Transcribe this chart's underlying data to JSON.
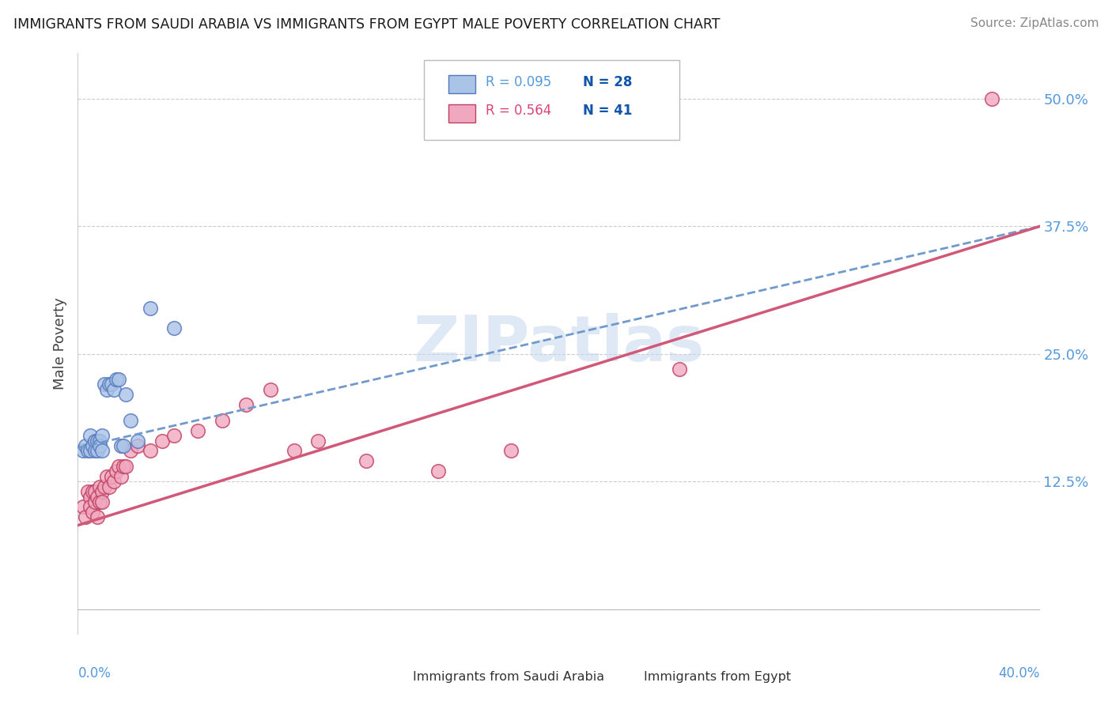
{
  "title": "IMMIGRANTS FROM SAUDI ARABIA VS IMMIGRANTS FROM EGYPT MALE POVERTY CORRELATION CHART",
  "source": "Source: ZipAtlas.com",
  "ylabel": "Male Poverty",
  "y_ticks": [
    0.0,
    0.125,
    0.25,
    0.375,
    0.5
  ],
  "y_tick_labels": [
    "",
    "12.5%",
    "25.0%",
    "37.5%",
    "50.0%"
  ],
  "x_range": [
    0.0,
    0.4
  ],
  "y_range": [
    -0.025,
    0.545
  ],
  "color_saudi": "#aac4e8",
  "color_egypt": "#f0a8c0",
  "color_saudi_line": "#7099cc",
  "color_egypt_line": "#d05878",
  "color_saudi_dark": "#5577bb",
  "color_egypt_dark": "#c04060",
  "watermark_text": "ZIPatlas",
  "legend_r1": "R = 0.095",
  "legend_n1": "N = 28",
  "legend_r2": "R = 0.564",
  "legend_n2": "N = 41",
  "legend_label1": "Immigrants from Saudi Arabia",
  "legend_label2": "Immigrants from Egypt",
  "saudi_x": [
    0.002,
    0.003,
    0.004,
    0.005,
    0.005,
    0.006,
    0.007,
    0.007,
    0.008,
    0.008,
    0.009,
    0.009,
    0.01,
    0.01,
    0.011,
    0.012,
    0.013,
    0.014,
    0.015,
    0.016,
    0.017,
    0.018,
    0.019,
    0.02,
    0.022,
    0.025,
    0.03,
    0.04
  ],
  "saudi_y": [
    0.155,
    0.16,
    0.155,
    0.17,
    0.155,
    0.16,
    0.165,
    0.155,
    0.165,
    0.155,
    0.165,
    0.16,
    0.17,
    0.155,
    0.22,
    0.215,
    0.22,
    0.22,
    0.215,
    0.225,
    0.225,
    0.16,
    0.16,
    0.21,
    0.185,
    0.165,
    0.295,
    0.275
  ],
  "egypt_x": [
    0.002,
    0.003,
    0.004,
    0.005,
    0.005,
    0.006,
    0.006,
    0.007,
    0.007,
    0.008,
    0.008,
    0.009,
    0.009,
    0.01,
    0.01,
    0.011,
    0.012,
    0.013,
    0.014,
    0.015,
    0.016,
    0.017,
    0.018,
    0.019,
    0.02,
    0.022,
    0.025,
    0.03,
    0.035,
    0.04,
    0.05,
    0.06,
    0.07,
    0.08,
    0.09,
    0.1,
    0.12,
    0.15,
    0.18,
    0.25,
    0.38
  ],
  "egypt_y": [
    0.1,
    0.09,
    0.115,
    0.11,
    0.1,
    0.115,
    0.095,
    0.105,
    0.115,
    0.09,
    0.11,
    0.105,
    0.12,
    0.115,
    0.105,
    0.12,
    0.13,
    0.12,
    0.13,
    0.125,
    0.135,
    0.14,
    0.13,
    0.14,
    0.14,
    0.155,
    0.16,
    0.155,
    0.165,
    0.17,
    0.175,
    0.185,
    0.2,
    0.215,
    0.155,
    0.165,
    0.145,
    0.135,
    0.155,
    0.235,
    0.5
  ],
  "saudi_line_x": [
    0.0,
    0.4
  ],
  "saudi_line_y": [
    0.158,
    0.375
  ],
  "egypt_line_x": [
    0.0,
    0.4
  ],
  "egypt_line_y": [
    0.082,
    0.375
  ]
}
